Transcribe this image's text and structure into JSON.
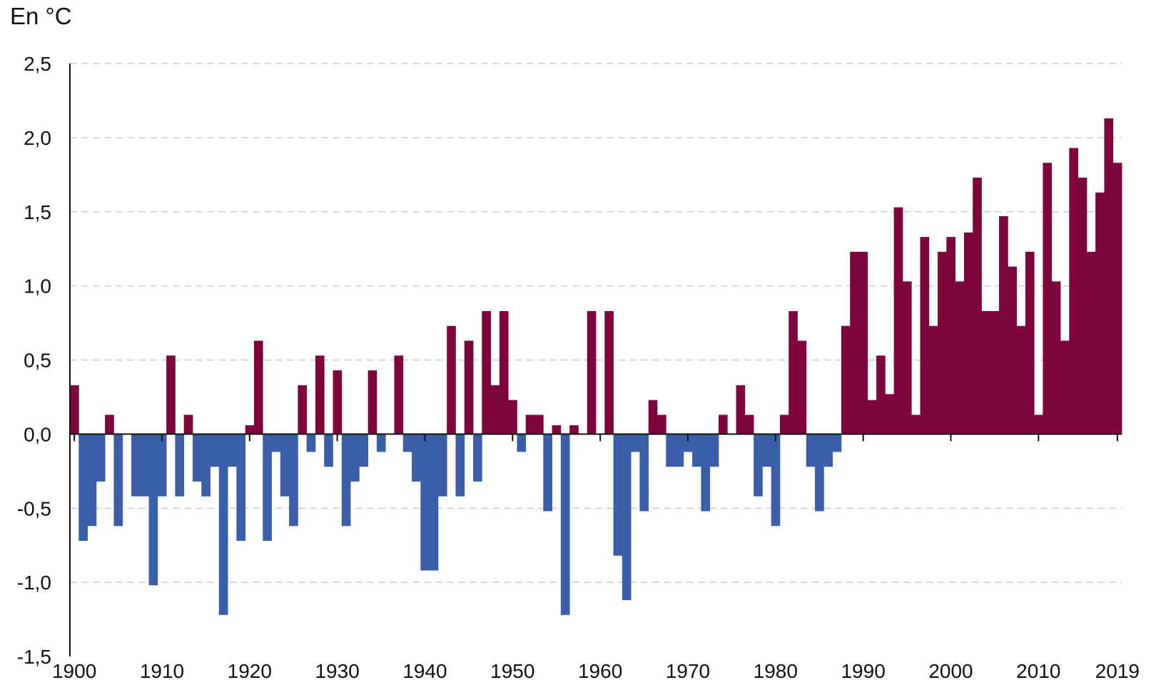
{
  "chart_data": {
    "type": "bar",
    "unit_label": "En °C",
    "colors": {
      "positive": "#7e063c",
      "negative": "#3b5ea9",
      "grid": "#cccccc",
      "axis": "#111111"
    },
    "grid": true,
    "ylim": [
      -1.5,
      2.5
    ],
    "yticks": [
      {
        "value": 2.5,
        "label": "2,5"
      },
      {
        "value": 2.0,
        "label": "2,0"
      },
      {
        "value": 1.5,
        "label": "1,5"
      },
      {
        "value": 1.0,
        "label": "1,0"
      },
      {
        "value": 0.5,
        "label": "0,5"
      },
      {
        "value": 0.0,
        "label": "0,0"
      },
      {
        "value": -0.5,
        "label": "-0,5"
      },
      {
        "value": -1.0,
        "label": "-1,0"
      },
      {
        "value": -1.5,
        "label": "-1,5"
      }
    ],
    "xticks": [
      "1900",
      "1910",
      "1920",
      "1930",
      "1940",
      "1950",
      "1960",
      "1970",
      "1980",
      "1990",
      "2000",
      "2010",
      "2019"
    ],
    "x": [
      1900,
      1901,
      1902,
      1903,
      1904,
      1905,
      1906,
      1907,
      1908,
      1909,
      1910,
      1911,
      1912,
      1913,
      1914,
      1915,
      1916,
      1917,
      1918,
      1919,
      1920,
      1921,
      1922,
      1923,
      1924,
      1925,
      1926,
      1927,
      1928,
      1929,
      1930,
      1931,
      1932,
      1933,
      1934,
      1935,
      1936,
      1937,
      1938,
      1939,
      1940,
      1941,
      1942,
      1943,
      1944,
      1945,
      1946,
      1947,
      1948,
      1949,
      1950,
      1951,
      1952,
      1953,
      1954,
      1955,
      1956,
      1957,
      1958,
      1959,
      1960,
      1961,
      1962,
      1963,
      1964,
      1965,
      1966,
      1967,
      1968,
      1969,
      1970,
      1971,
      1972,
      1973,
      1974,
      1975,
      1976,
      1977,
      1978,
      1979,
      1980,
      1981,
      1982,
      1983,
      1984,
      1985,
      1986,
      1987,
      1988,
      1989,
      1990,
      1991,
      1992,
      1993,
      1994,
      1995,
      1996,
      1997,
      1998,
      1999,
      2000,
      2001,
      2002,
      2003,
      2004,
      2005,
      2006,
      2007,
      2008,
      2009,
      2010,
      2011,
      2012,
      2013,
      2014,
      2015,
      2016,
      2017,
      2018,
      2019
    ],
    "values": [
      0.33,
      -0.72,
      -0.62,
      -0.32,
      0.13,
      -0.62,
      0.0,
      -0.42,
      -0.42,
      -1.02,
      -0.42,
      0.53,
      -0.42,
      0.13,
      -0.32,
      -0.42,
      -0.22,
      -1.22,
      -0.22,
      -0.72,
      0.06,
      0.63,
      -0.72,
      -0.12,
      -0.42,
      -0.62,
      0.33,
      -0.12,
      0.53,
      -0.22,
      0.43,
      -0.62,
      -0.32,
      -0.22,
      0.43,
      -0.12,
      0.0,
      0.53,
      -0.12,
      -0.32,
      -0.92,
      -0.92,
      -0.42,
      0.73,
      -0.42,
      0.63,
      -0.32,
      0.83,
      0.33,
      0.83,
      0.23,
      -0.12,
      0.13,
      0.13,
      -0.52,
      0.06,
      -1.22,
      0.06,
      0.0,
      0.83,
      0.0,
      0.83,
      -0.82,
      -1.12,
      -0.12,
      -0.52,
      0.23,
      0.13,
      -0.22,
      -0.22,
      -0.12,
      -0.22,
      -0.52,
      -0.22,
      0.13,
      0.0,
      0.33,
      0.13,
      -0.42,
      -0.22,
      -0.62,
      0.13,
      0.83,
      0.63,
      -0.22,
      -0.52,
      -0.22,
      -0.12,
      0.73,
      1.23,
      1.23,
      0.23,
      0.53,
      0.27,
      1.53,
      1.03,
      0.13,
      1.33,
      0.73,
      1.23,
      1.33,
      1.03,
      1.36,
      1.73,
      0.83,
      0.83,
      1.47,
      1.13,
      0.73,
      1.23,
      0.13,
      1.83,
      1.03,
      0.63,
      1.93,
      1.73,
      1.23,
      1.63,
      2.13,
      1.83
    ]
  }
}
